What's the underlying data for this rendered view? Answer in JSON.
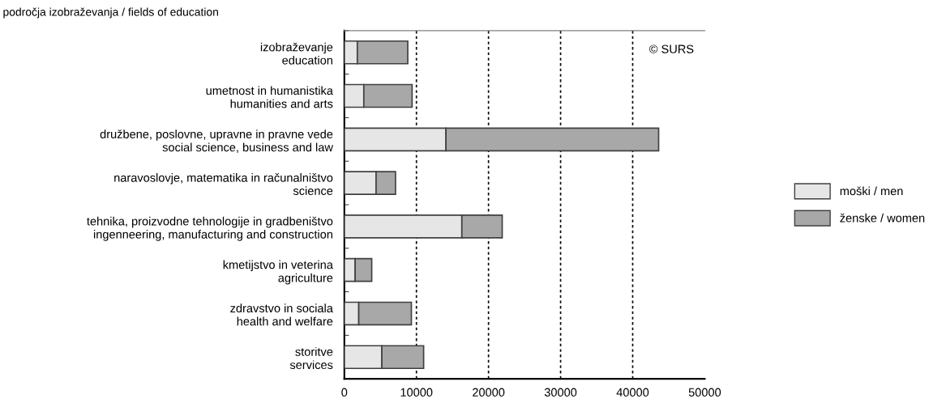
{
  "chart_data": {
    "type": "bar",
    "orientation": "horizontal",
    "stacked": true,
    "ylabel": "področja izobraževanja / fields of education",
    "categories": [
      "izobraževanje\neducation",
      "umetnost in humanistika\nhumanities and arts",
      "družbene, poslovne, upravne in pravne vede\nsocial science, business and law",
      "naravoslovje, matematika in računalništvo\nscience",
      "tehnika, proizvodne tehnologije in gradbeništvo\ningenneering, manufacturing and construction",
      "kmetijstvo in veterina\nagriculture",
      "zdravstvo in sociala\nhealth and welfare",
      "storitve\nservices"
    ],
    "series": [
      {
        "name": "moški / men",
        "color": "#e6e6e6",
        "values": [
          1800,
          2700,
          14100,
          4400,
          16300,
          1500,
          2000,
          5200
        ]
      },
      {
        "name": "ženske / women",
        "color": "#a8a8a8",
        "values": [
          7000,
          6700,
          29500,
          2700,
          5600,
          2300,
          7300,
          5800
        ]
      }
    ],
    "xlim": [
      0,
      50000
    ],
    "xticks": [
      0,
      10000,
      20000,
      30000,
      40000,
      50000
    ],
    "grid": "x",
    "legend": "right",
    "annotations": [
      "© SURS"
    ]
  }
}
